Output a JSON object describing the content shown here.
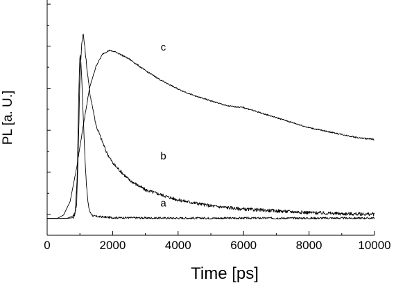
{
  "chart_data": {
    "type": "line",
    "xlabel": "Time [ps]",
    "ylabel": "PL [a. U.]",
    "xlim": [
      0,
      10000
    ],
    "ylim": [
      -0.1,
      1.3
    ],
    "xticks": [
      0,
      2000,
      4000,
      6000,
      8000,
      10000
    ],
    "yticks_shown": false,
    "series": [
      {
        "name": "a",
        "label_at": [
          3550,
          0.07
        ],
        "x": [
          0,
          600,
          850,
          920,
          960,
          1000,
          1030,
          1060,
          1100,
          1150,
          1200,
          1250,
          1300,
          1400,
          1600,
          2000,
          3000,
          4000,
          6000,
          8000,
          10000
        ],
        "y": [
          0,
          0,
          0.02,
          0.25,
          0.7,
          0.98,
          0.94,
          0.82,
          0.62,
          0.38,
          0.2,
          0.09,
          0.04,
          0.015,
          0.01,
          0.005,
          0.003,
          0.002,
          0.002,
          0.002,
          0.002
        ]
      },
      {
        "name": "b",
        "label_at": [
          3550,
          0.35
        ],
        "x": [
          0,
          600,
          800,
          900,
          950,
          1000,
          1050,
          1100,
          1150,
          1200,
          1300,
          1500,
          1800,
          2000,
          2500,
          3000,
          4000,
          5000,
          6000,
          7000,
          8000,
          9000,
          10000
        ],
        "y": [
          0,
          0,
          0.005,
          0.08,
          0.4,
          0.82,
          1.03,
          1.1,
          1.02,
          0.92,
          0.75,
          0.55,
          0.4,
          0.33,
          0.23,
          0.17,
          0.11,
          0.075,
          0.055,
          0.045,
          0.035,
          0.028,
          0.025
        ]
      },
      {
        "name": "c",
        "label_at": [
          3550,
          1.0
        ],
        "x": [
          0,
          300,
          500,
          700,
          900,
          1100,
          1300,
          1500,
          1700,
          1900,
          2100,
          2500,
          3000,
          3500,
          4000,
          4500,
          5000,
          5500,
          6000,
          6500,
          7000,
          7500,
          8000,
          8500,
          9000,
          9500,
          10000
        ],
        "y": [
          0,
          0,
          0.02,
          0.1,
          0.3,
          0.55,
          0.78,
          0.91,
          0.98,
          1.0,
          0.99,
          0.95,
          0.88,
          0.82,
          0.77,
          0.73,
          0.7,
          0.67,
          0.66,
          0.63,
          0.6,
          0.57,
          0.54,
          0.52,
          0.5,
          0.48,
          0.47
        ]
      }
    ]
  }
}
